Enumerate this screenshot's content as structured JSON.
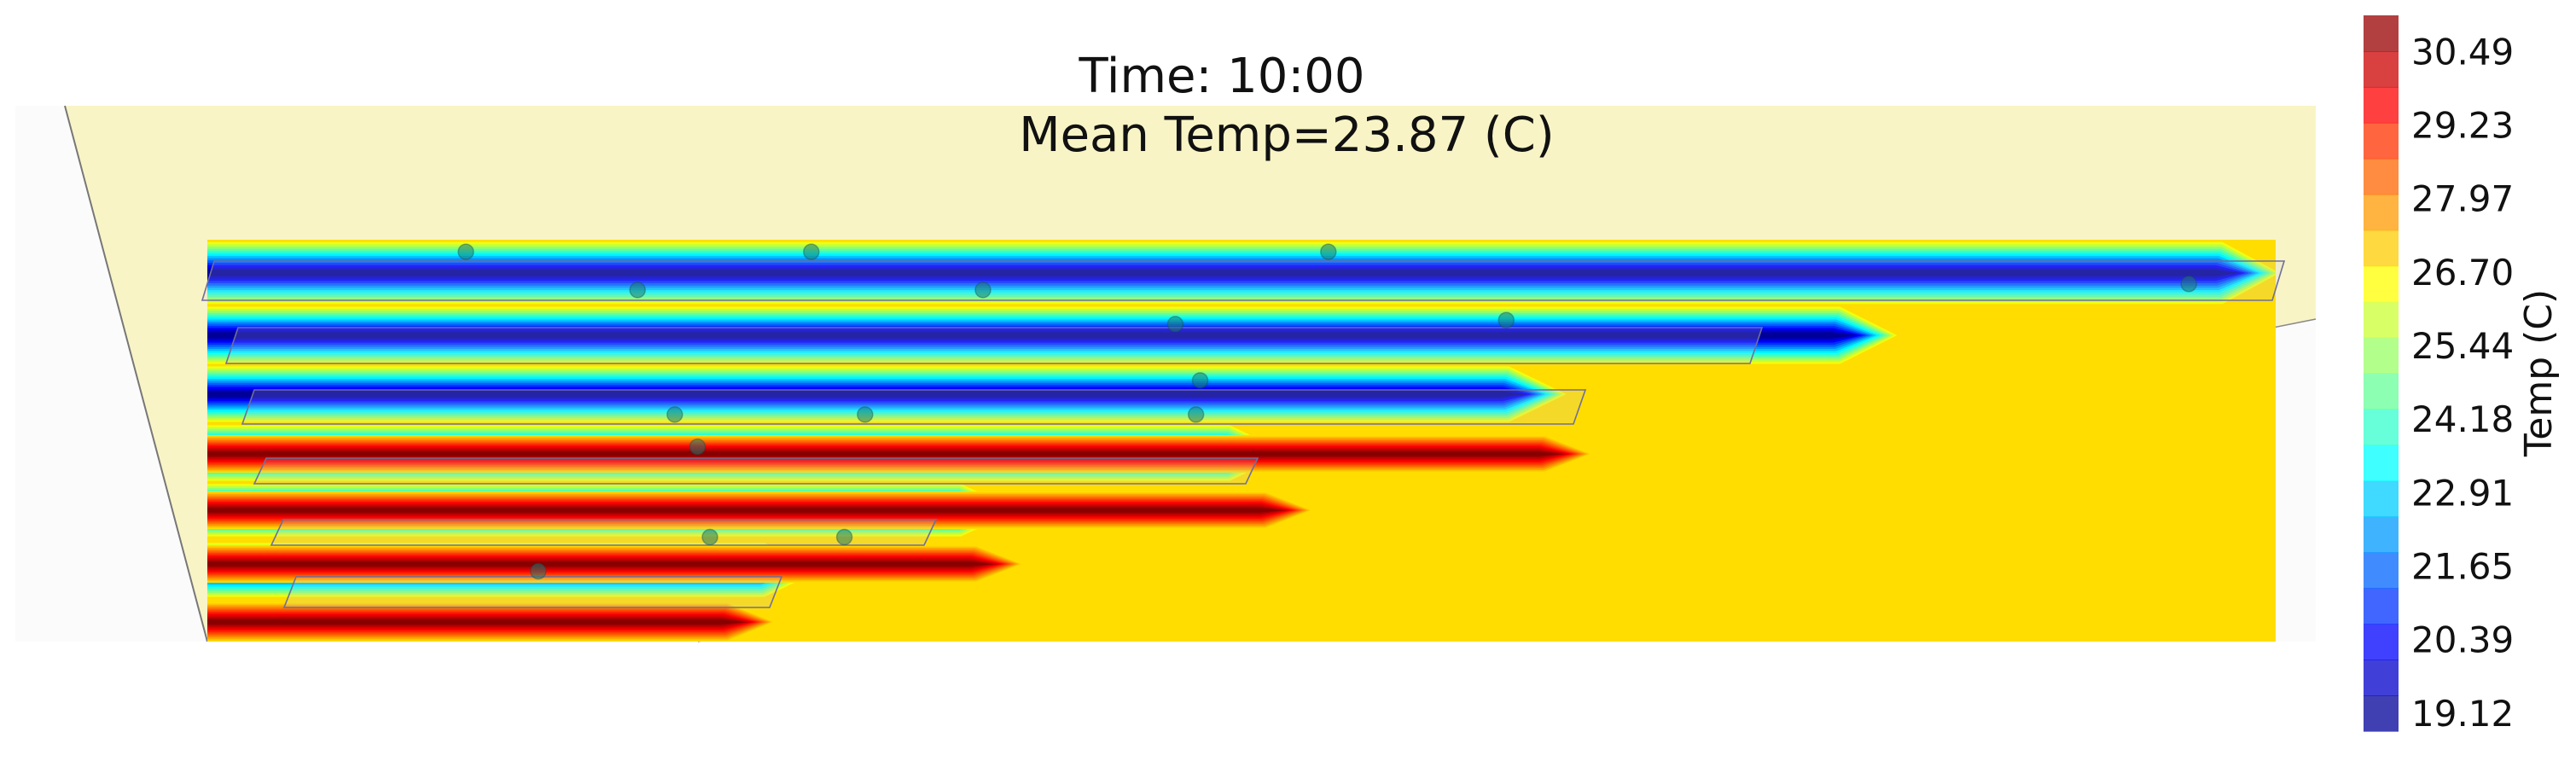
{
  "chart_data": {
    "type": "heatmap",
    "title_time": "Time: 10:00",
    "title_mean": "Mean Temp=23.87 (C)",
    "colorbar": {
      "label": "Temp (C)",
      "ticks": [
        19.12,
        20.39,
        21.65,
        22.91,
        24.18,
        25.44,
        26.7,
        27.97,
        29.23,
        30.49
      ],
      "tick_labels": [
        "19.12",
        "20.39",
        "21.65",
        "22.91",
        "24.18",
        "25.44",
        "26.70",
        "27.97",
        "29.23",
        "30.49"
      ],
      "range": [
        18.8,
        31.1
      ],
      "colormap": "jet",
      "levels": 20
    },
    "grid": false,
    "background_temp": 26.9,
    "cold_rows": [
      {
        "length": 0.985
      },
      {
        "length": 0.8
      },
      {
        "length": 0.64
      },
      {
        "length": 0.505
      },
      {
        "length": 0.375
      },
      {
        "length": 0.28
      }
    ],
    "hot_rows": [
      {
        "length": 0.655
      },
      {
        "length": 0.52
      },
      {
        "length": 0.38
      },
      {
        "length": 0.26
      }
    ],
    "sensors": [
      {
        "x": 0.125,
        "y": 0.97
      },
      {
        "x": 0.292,
        "y": 0.97
      },
      {
        "x": 0.542,
        "y": 0.97
      },
      {
        "x": 0.208,
        "y": 0.875
      },
      {
        "x": 0.375,
        "y": 0.875
      },
      {
        "x": 0.958,
        "y": 0.89
      },
      {
        "x": 0.468,
        "y": 0.79
      },
      {
        "x": 0.628,
        "y": 0.8
      },
      {
        "x": 0.48,
        "y": 0.65
      },
      {
        "x": 0.226,
        "y": 0.565
      },
      {
        "x": 0.318,
        "y": 0.565
      },
      {
        "x": 0.478,
        "y": 0.565
      },
      {
        "x": 0.237,
        "y": 0.485
      },
      {
        "x": 0.243,
        "y": 0.26
      },
      {
        "x": 0.308,
        "y": 0.26
      },
      {
        "x": 0.16,
        "y": 0.175
      }
    ]
  }
}
